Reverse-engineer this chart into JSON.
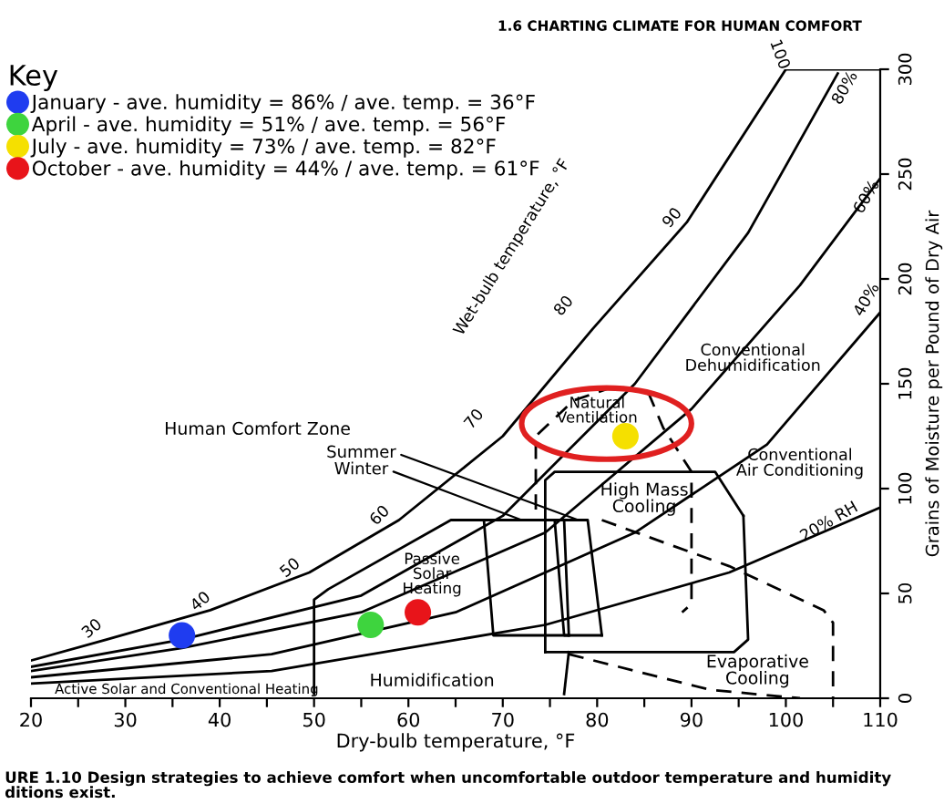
{
  "chart_data": {
    "type": "scatter",
    "xlabel": "Dry-bulb temperature, °F",
    "ylabel": "Grains of Moisture per Pound of Dry Air",
    "legend_title": "Key",
    "legend": "top left",
    "xlim": [
      20,
      110
    ],
    "xticks": [
      20,
      {
        "value": 25,
        "label": null
      },
      30,
      {
        "value": 35,
        "label": null
      },
      40,
      {
        "value": 45,
        "label": null
      },
      50,
      {
        "value": 55,
        "label": null
      },
      60,
      {
        "value": 65,
        "label": null
      },
      70,
      {
        "value": 75,
        "label": null
      },
      80,
      {
        "value": 85,
        "label": null
      },
      90,
      {
        "value": 95,
        "label": null
      },
      100,
      {
        "value": 105,
        "label": null
      },
      110
    ],
    "ylim": [
      0,
      300
    ],
    "yticks": [
      0,
      50,
      100,
      150,
      200,
      250,
      300
    ],
    "grid": false,
    "series": [
      {
        "name": "January - ave. humidity = 86% / ave. temp. = 36°F",
        "color": "#1f3cf0",
        "x": [
          36
        ],
        "values": [
          30
        ]
      },
      {
        "name": "April - ave. humidity = 51% / ave. temp. = 56°F",
        "color": "#3ed43e",
        "x": [
          56
        ],
        "values": [
          35
        ]
      },
      {
        "name": "July - ave. humidity = 73% / ave. temp. = 82°F",
        "color": "#f5e000",
        "x": [
          83
        ],
        "values": [
          125
        ]
      },
      {
        "name": "October - ave. humidity = 44% / ave. temp. = 61°F",
        "color": "#e8141a",
        "x": [
          61
        ],
        "values": [
          41
        ]
      },
      {
        "type": "line",
        "color": "#000000",
        "x": [
          20,
          28,
          39,
          49.5,
          59,
          70,
          79.5,
          89.5,
          100
        ],
        "values": [
          18,
          28,
          42,
          60,
          85,
          125,
          176,
          227,
          300
        ]
      },
      {
        "type": "line",
        "color": "#000000",
        "x": [
          100,
          110
        ],
        "values": [
          300,
          300
        ]
      },
      {
        "type": "line",
        "color": "#000000",
        "x": [
          20,
          36,
          55,
          70,
          84,
          96,
          105.5
        ],
        "values": [
          15,
          28,
          49,
          87,
          150,
          222,
          298
        ]
      },
      {
        "type": "line",
        "color": "#000000",
        "x": [
          20,
          36,
          55,
          74.5,
          90,
          101.5,
          110
        ],
        "values": [
          13,
          24,
          41,
          79,
          138,
          197,
          248
        ]
      },
      {
        "type": "line",
        "color": "#000000",
        "x": [
          20,
          45.5,
          65,
          84,
          98,
          110
        ],
        "values": [
          10,
          21,
          41,
          79,
          121,
          184
        ]
      },
      {
        "type": "line",
        "color": "#000000",
        "x": [
          20,
          45.5,
          74.5,
          94,
          110
        ],
        "values": [
          7,
          13,
          35,
          60,
          91
        ]
      },
      {
        "type": "line",
        "color": "#000000",
        "x": [
          77,
          69,
          68
        ],
        "values": [
          30,
          30,
          85
        ]
      },
      {
        "type": "line",
        "color": "#000000",
        "x": [
          75.5,
          79,
          80.5
        ],
        "values": [
          85,
          85,
          30
        ]
      },
      {
        "type": "line",
        "color": "#000000",
        "x": [
          80.5,
          76.5,
          75.5
        ],
        "values": [
          30,
          30,
          85
        ]
      },
      {
        "type": "line",
        "color": "#000000",
        "x": [
          50,
          50,
          51.5,
          64.5,
          68,
          76.5,
          77
        ],
        "values": [
          2,
          47,
          52,
          85,
          85,
          85,
          30
        ]
      },
      {
        "type": "line",
        "color": "#000000",
        "x": [
          77,
          76.5
        ],
        "values": [
          22,
          2
        ]
      },
      {
        "type": "line",
        "color": "#000000",
        "x": [
          74.5,
          74.5,
          75.5,
          92.5,
          95.5
        ],
        "values": [
          22,
          104,
          108,
          108,
          87
        ]
      },
      {
        "type": "line",
        "color": "#000000",
        "x": [
          95.5,
          96,
          94.5,
          74.5
        ],
        "values": [
          87,
          28,
          22,
          22
        ]
      },
      {
        "type": "line",
        "color": "#000000",
        "line_style": "dashed",
        "x": [
          73.5,
          73.5,
          77.5,
          82,
          85.5,
          87,
          90,
          90,
          89
        ],
        "values": [
          90,
          125,
          142,
          149,
          145,
          129,
          108,
          45,
          41
        ]
      },
      {
        "type": "line",
        "color": "#000000",
        "line_style": "dashed",
        "x": [
          80.5,
          94,
          104,
          105,
          105
        ],
        "values": [
          85,
          63,
          42,
          36,
          0
        ]
      },
      {
        "type": "line",
        "color": "#000000",
        "line_style": "dashed",
        "x": [
          77,
          92,
          101.5
        ],
        "values": [
          21,
          4,
          0
        ]
      }
    ],
    "annotations": [
      "1.6 CHARTING CLIMATE FOR HUMAN COMFORT",
      "URE 1.10 Design strategies to achieve comfort when uncomfortable outdoor temperature and humidity\nditions exist.",
      "30",
      "40",
      "50",
      "60",
      "70",
      "80",
      "90",
      "100",
      "80%",
      "60%",
      "40%",
      "20% RH",
      "Wet-bulb temperature, °F",
      "Human Comfort Zone",
      {
        "text": "Summer",
        "x": 78,
        "y": 85
      },
      {
        "text": "Winter",
        "x": 72,
        "y": 85
      },
      "Natural\nVentilation",
      "High Mass\nCooling",
      "Conventional\nDehumidification",
      "Conventional\nAir Conditioning",
      "Evaporative\nCooling",
      "Passive\nSolar\nHeating",
      "Active Solar and Conventional Heating",
      "Humidification"
    ]
  }
}
